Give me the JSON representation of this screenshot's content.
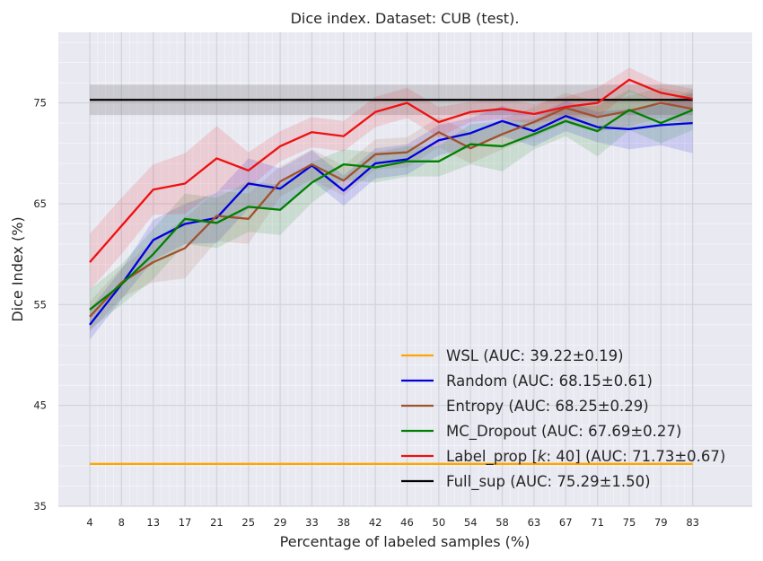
{
  "chart_data": {
    "type": "line",
    "title": "Dice index. Dataset: CUB (test).",
    "xlabel": "Percentage of labeled samples (%)",
    "ylabel": "Dice Index (%)",
    "x": [
      4,
      8,
      13,
      17,
      21,
      25,
      29,
      33,
      38,
      42,
      46,
      50,
      54,
      58,
      63,
      67,
      71,
      75,
      79,
      83
    ],
    "ylim": [
      35,
      82
    ],
    "yticks": [
      35,
      45,
      55,
      65,
      75
    ],
    "grid": true,
    "legend_position": "lower-right",
    "series": [
      {
        "name": "WSL (AUC: 39.22±0.19)",
        "color": "#ffa500",
        "values": [
          39.2,
          39.2,
          39.2,
          39.2,
          39.2,
          39.2,
          39.2,
          39.2,
          39.2,
          39.2,
          39.2,
          39.2,
          39.2,
          39.2,
          39.2,
          39.2,
          39.2,
          39.2,
          39.2,
          39.2
        ],
        "band": [
          0.1,
          0.1,
          0.1,
          0.1,
          0.1,
          0.1,
          0.1,
          0.1,
          0.1,
          0.1,
          0.1,
          0.1,
          0.1,
          0.1,
          0.1,
          0.1,
          0.1,
          0.1,
          0.1,
          0.1
        ]
      },
      {
        "name": "Random (AUC: 68.15±0.61)",
        "color": "#0000dd",
        "values": [
          53.0,
          57.0,
          61.4,
          63.0,
          63.6,
          67.0,
          66.5,
          68.8,
          66.3,
          69.0,
          69.4,
          71.3,
          72.0,
          73.2,
          72.2,
          73.7,
          72.6,
          72.4,
          72.8,
          73.0
        ],
        "band": [
          1.5,
          1.5,
          2.0,
          2.0,
          2.5,
          2.5,
          2.0,
          1.5,
          1.5,
          1.5,
          1.5,
          1.5,
          1.5,
          1.5,
          1.5,
          1.5,
          1.5,
          2.0,
          2.0,
          3.0
        ]
      },
      {
        "name": "Entropy (AUC: 68.25±0.29)",
        "color": "#a0522d",
        "values": [
          53.8,
          57.2,
          59.2,
          60.6,
          63.8,
          63.5,
          67.2,
          68.9,
          67.3,
          69.9,
          70.1,
          72.1,
          70.5,
          71.9,
          73.1,
          74.5,
          73.6,
          74.2,
          75.0,
          74.4
        ],
        "band": [
          1.5,
          1.5,
          2.0,
          3.0,
          2.5,
          2.5,
          1.5,
          1.5,
          1.5,
          1.5,
          1.5,
          1.5,
          1.5,
          1.5,
          1.5,
          1.5,
          1.5,
          1.5,
          1.5,
          1.5
        ]
      },
      {
        "name": "MC_Dropout (AUC: 67.69±0.27)",
        "color": "#008000",
        "values": [
          54.5,
          57.0,
          60.0,
          63.5,
          63.1,
          64.7,
          64.4,
          67.1,
          68.9,
          68.6,
          69.2,
          69.2,
          70.9,
          70.7,
          71.9,
          73.2,
          72.2,
          74.3,
          73.0,
          74.3
        ],
        "band": [
          2.0,
          2.0,
          2.5,
          2.5,
          2.5,
          2.5,
          2.5,
          2.0,
          1.5,
          1.5,
          1.5,
          1.5,
          2.0,
          2.5,
          1.5,
          1.5,
          2.5,
          2.0,
          2.0,
          2.0
        ]
      },
      {
        "name": "Label_prop [k: 40] (AUC: 71.73±0.67)",
        "name_parts": [
          "Label_prop [",
          "k",
          ": 40] (AUC: 71.73±0.67)"
        ],
        "color": "#ee1111",
        "values": [
          59.2,
          62.8,
          66.4,
          67.0,
          69.5,
          68.3,
          70.7,
          72.1,
          71.7,
          74.1,
          75.0,
          73.1,
          74.1,
          74.4,
          73.9,
          74.6,
          75.0,
          77.3,
          76.0,
          75.4
        ],
        "band": [
          2.8,
          2.8,
          2.5,
          3.0,
          3.2,
          1.8,
          1.5,
          1.5,
          1.5,
          1.5,
          1.5,
          1.5,
          1.0,
          1.0,
          1.0,
          1.0,
          1.5,
          1.2,
          1.0,
          1.0
        ]
      },
      {
        "name": "Full_sup (AUC: 75.29±1.50)",
        "color": "#000000",
        "values": [
          75.3,
          75.3,
          75.3,
          75.3,
          75.3,
          75.3,
          75.3,
          75.3,
          75.3,
          75.3,
          75.3,
          75.3,
          75.3,
          75.3,
          75.3,
          75.3,
          75.3,
          75.3,
          75.3,
          75.3
        ],
        "band": [
          1.5,
          1.5,
          1.5,
          1.5,
          1.5,
          1.5,
          1.5,
          1.5,
          1.5,
          1.5,
          1.5,
          1.5,
          1.5,
          1.5,
          1.5,
          1.5,
          1.5,
          1.5,
          1.5,
          1.5
        ]
      }
    ]
  }
}
